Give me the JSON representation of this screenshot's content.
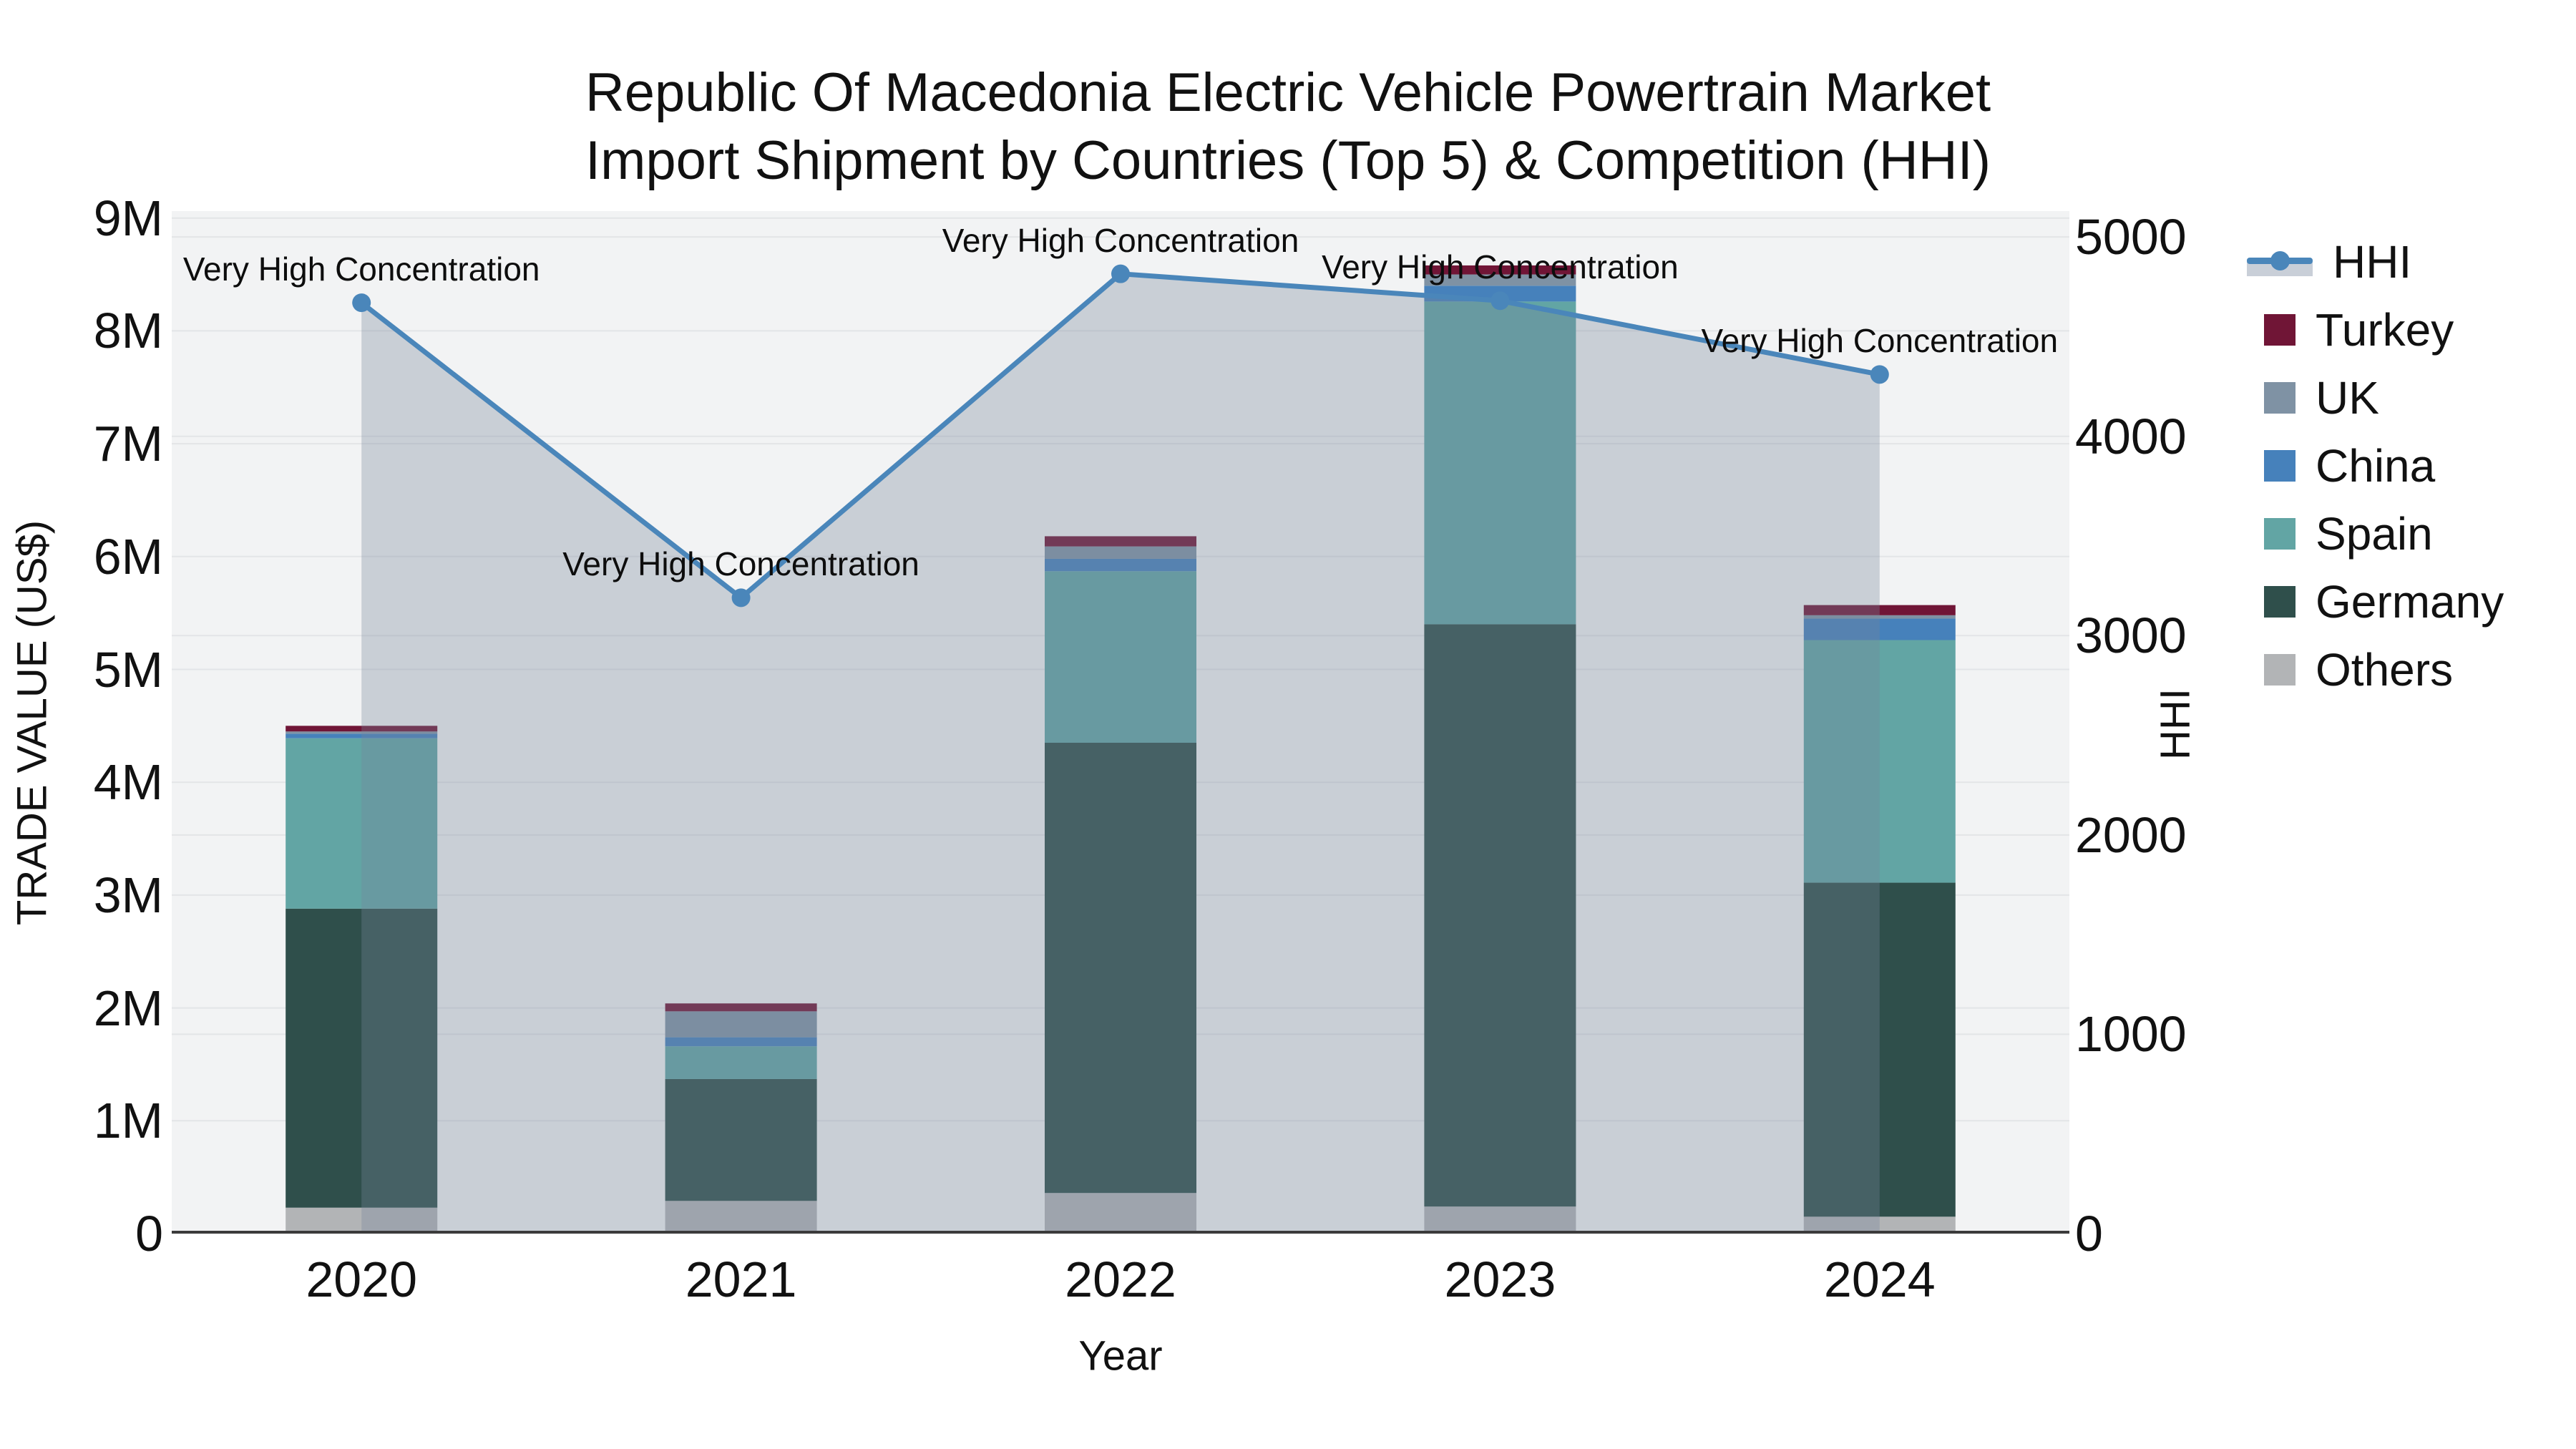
{
  "title": {
    "line1": "Republic Of Macedonia Electric Vehicle Powertrain Market",
    "line2": "Import Shipment by Countries (Top 5) & Competition (HHI)"
  },
  "axes": {
    "y_left": {
      "title": "TRADE VALUE (US$)",
      "tick_labels": [
        "0",
        "1M",
        "2M",
        "3M",
        "4M",
        "5M",
        "6M",
        "7M",
        "8M",
        "9M"
      ],
      "tick_values_musd": [
        0,
        1,
        2,
        3,
        4,
        5,
        6,
        7,
        8,
        9
      ]
    },
    "y_right": {
      "title": "HHI",
      "tick_labels": [
        "0",
        "1000",
        "2000",
        "3000",
        "4000",
        "5000"
      ],
      "tick_values": [
        0,
        1000,
        2000,
        3000,
        4000,
        5000
      ]
    },
    "x": {
      "title": "Year",
      "categories": [
        "2020",
        "2021",
        "2022",
        "2023",
        "2024"
      ]
    }
  },
  "legend": {
    "items": [
      {
        "label": "HHI",
        "type": "line",
        "color": "#4a86ba",
        "band_color": "#c9cfd8"
      },
      {
        "label": "Turkey",
        "type": "box",
        "color": "#701536"
      },
      {
        "label": "UK",
        "type": "box",
        "color": "#7f92a4"
      },
      {
        "label": "China",
        "type": "box",
        "color": "#4681bb"
      },
      {
        "label": "Spain",
        "type": "box",
        "color": "#62a5a4"
      },
      {
        "label": "Germany",
        "type": "box",
        "color": "#2f4f4b"
      },
      {
        "label": "Others",
        "type": "box",
        "color": "#b2b4b6"
      }
    ]
  },
  "colors": {
    "plot_background": "#f2f3f4",
    "gridline": "#e3e5e7",
    "axis_line": "#3b3b3b",
    "hhi_line": "#4a86ba",
    "hhi_area_fill": "rgba(119,134,155,0.33)",
    "text": "#111111"
  },
  "chart_data": {
    "type": "bar+line",
    "categories": [
      "2020",
      "2021",
      "2022",
      "2023",
      "2024"
    ],
    "bar_value_unit": "US$ millions",
    "stack_order_bottom_to_top": [
      "Others",
      "Germany",
      "Spain",
      "China",
      "UK",
      "Turkey"
    ],
    "series": [
      {
        "name": "Others",
        "color": "#b2b4b6",
        "values": [
          0.23,
          0.29,
          0.36,
          0.24,
          0.15
        ]
      },
      {
        "name": "Germany",
        "color": "#2f4f4b",
        "values": [
          2.65,
          1.08,
          3.99,
          5.16,
          2.96
        ]
      },
      {
        "name": "Spain",
        "color": "#62a5a4",
        "values": [
          1.51,
          0.29,
          1.52,
          2.86,
          2.15
        ]
      },
      {
        "name": "China",
        "color": "#4681bb",
        "values": [
          0.04,
          0.08,
          0.11,
          0.14,
          0.19
        ]
      },
      {
        "name": "UK",
        "color": "#7f92a4",
        "values": [
          0.02,
          0.23,
          0.11,
          0.1,
          0.03
        ]
      },
      {
        "name": "Turkey",
        "color": "#701536",
        "values": [
          0.05,
          0.07,
          0.09,
          0.08,
          0.09
        ]
      }
    ],
    "bar_totals_musd": [
      4.5,
      2.04,
      6.18,
      8.58,
      5.57
    ],
    "line_series": {
      "name": "HHI",
      "axis": "right",
      "color": "#4a86ba",
      "area_fill": "rgba(119,134,155,0.33)",
      "values": [
        4670,
        3190,
        4815,
        4680,
        4310
      ]
    },
    "annotations": [
      {
        "category": "2020",
        "text": "Very High Concentration"
      },
      {
        "category": "2021",
        "text": "Very High Concentration"
      },
      {
        "category": "2022",
        "text": "Very High Concentration"
      },
      {
        "category": "2023",
        "text": "Very High Concentration"
      },
      {
        "category": "2024",
        "text": "Very High Concentration"
      }
    ],
    "ylim_left_musd": [
      0,
      9
    ],
    "ylim_right": [
      0,
      5000
    ],
    "grid": true,
    "legend_position": "right"
  }
}
